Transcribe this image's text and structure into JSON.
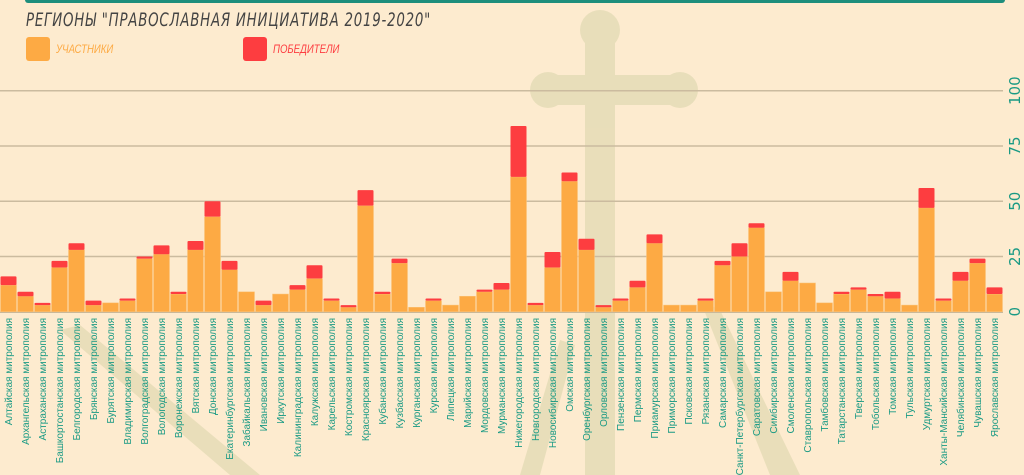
{
  "chart_data": {
    "type": "bar",
    "stacked": true,
    "title": "РЕГИОНЫ \"ПРАВОСЛАВНАЯ ИНИЦИАТИВА 2019-2020\"",
    "xlabel": "",
    "ylabel": "",
    "ylim": [
      0,
      100
    ],
    "yticks": [
      "0",
      "25",
      "50",
      "75",
      "100"
    ],
    "grid": true,
    "legend_position": "top-left",
    "categories": [
      "Алтайская митрополия",
      "Архангельская митрополия",
      "Астраханская митрополия",
      "Башкортостанская митрополия",
      "Белгородская митрополия",
      "Брянская митрополия",
      "Бурятская митрополия",
      "Владимирская митрополия",
      "Волгоградская митрополия",
      "Вологодская митрополия",
      "Воронежская митрополия",
      "Вятская митрополия",
      "Донская митрополия",
      "Екатеринбургская митрополия",
      "Забайкальская митрополия",
      "Ивановская митрополия",
      "Иркутская митрополия",
      "Калининградская митрополия",
      "Калужская митрополия",
      "Карельская митрополия",
      "Костромская митрополия",
      "Красноярская митрополия",
      "Кубанская митрополия",
      "Кузбасская митрополия",
      "Курганская митрополия",
      "Курская митрополия",
      "Липецкая митрополия",
      "Марийская митрополия",
      "Мордовская митрополия",
      "Мурманская митрополия",
      "Нижегородская митрополия",
      "Новгородская митрополия",
      "Новосибирская митрополия",
      "Омская митрополия",
      "Оренбургская митрополия",
      "Орловская митрополия",
      "Пензенская митрополия",
      "Пермская митрополия",
      "Приамурская митрополия",
      "Приморская митрополия",
      "Псковская митрополия",
      "Рязанская митрополия",
      "Самарская митрополия",
      "Санкт-Петербургская митрополия",
      "Саратовская митрополия",
      "Симбирская митрополия",
      "Смоленская митрополия",
      "Ставропольская митрополия",
      "Тамбовская митрополия",
      "Татарстанская митрополия",
      "Тверская митрополия",
      "Тобольская митрополия",
      "Томская митрополия",
      "Тульская митрополия",
      "Удмуртская митрополия",
      "Ханты-Мансийская митрополия",
      "Челябинская митрополия",
      "Чувашская митрополия",
      "Ярославская митрополия"
    ],
    "series": [
      {
        "name": "УЧАСТНИКИ",
        "color": "#fdaa44",
        "values": [
          12,
          7,
          3,
          20,
          28,
          3,
          4,
          5,
          24,
          26,
          8,
          28,
          43,
          19,
          9,
          3,
          8,
          10,
          15,
          5,
          2,
          48,
          8,
          22,
          2,
          5,
          3,
          7,
          9,
          10,
          61,
          3,
          20,
          59,
          28,
          2,
          5,
          11,
          31,
          3,
          3,
          5,
          21,
          25,
          38,
          9,
          14,
          13,
          4,
          8,
          10,
          7,
          6,
          3,
          47,
          5,
          14,
          22,
          8
        ]
      },
      {
        "name": "ПОБЕДИТЕЛИ",
        "color": "#fd3d40",
        "values": [
          4,
          2,
          1,
          3,
          3,
          2,
          0,
          1,
          1,
          4,
          1,
          4,
          7,
          4,
          0,
          2,
          0,
          2,
          6,
          1,
          1,
          7,
          1,
          2,
          0,
          1,
          0,
          0,
          1,
          3,
          23,
          1,
          7,
          4,
          5,
          1,
          1,
          3,
          4,
          0,
          0,
          1,
          2,
          6,
          2,
          0,
          4,
          0,
          0,
          1,
          1,
          1,
          3,
          0,
          9,
          1,
          4,
          2,
          3
        ]
      }
    ]
  },
  "colors": {
    "axis_text": "#1a9a84",
    "grid": "#cbbb9f",
    "background": "#fdebcf"
  }
}
